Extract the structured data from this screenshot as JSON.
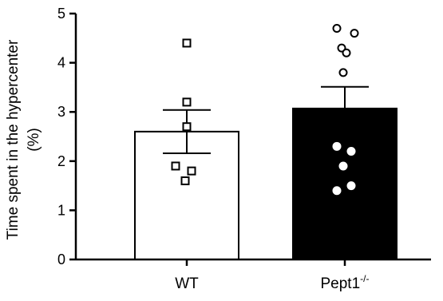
{
  "chart_data": {
    "type": "bar",
    "categories": [
      "WT",
      "Pept1"
    ],
    "category_superscripts": [
      "",
      "-/-"
    ],
    "ylabel_line1": "Time spent in the hypercenter",
    "ylabel_line2": "(%)",
    "ylim": [
      0,
      5
    ],
    "yticks": [
      "0",
      "1",
      "2",
      "3",
      "4",
      "5"
    ],
    "grid": false,
    "bar_colors": [
      "#ffffff",
      "#000000"
    ],
    "series": [
      {
        "means": [
          2.6,
          3.07
        ],
        "errors": [
          0.44,
          0.44
        ],
        "points": [
          [
            4.4,
            3.2,
            2.7,
            1.9,
            1.8,
            1.6
          ],
          [
            4.7,
            4.6,
            4.3,
            4.2,
            3.8,
            2.3,
            2.2,
            1.9,
            1.5,
            1.4
          ]
        ],
        "marker_shapes": [
          "square",
          "circle"
        ]
      }
    ]
  }
}
